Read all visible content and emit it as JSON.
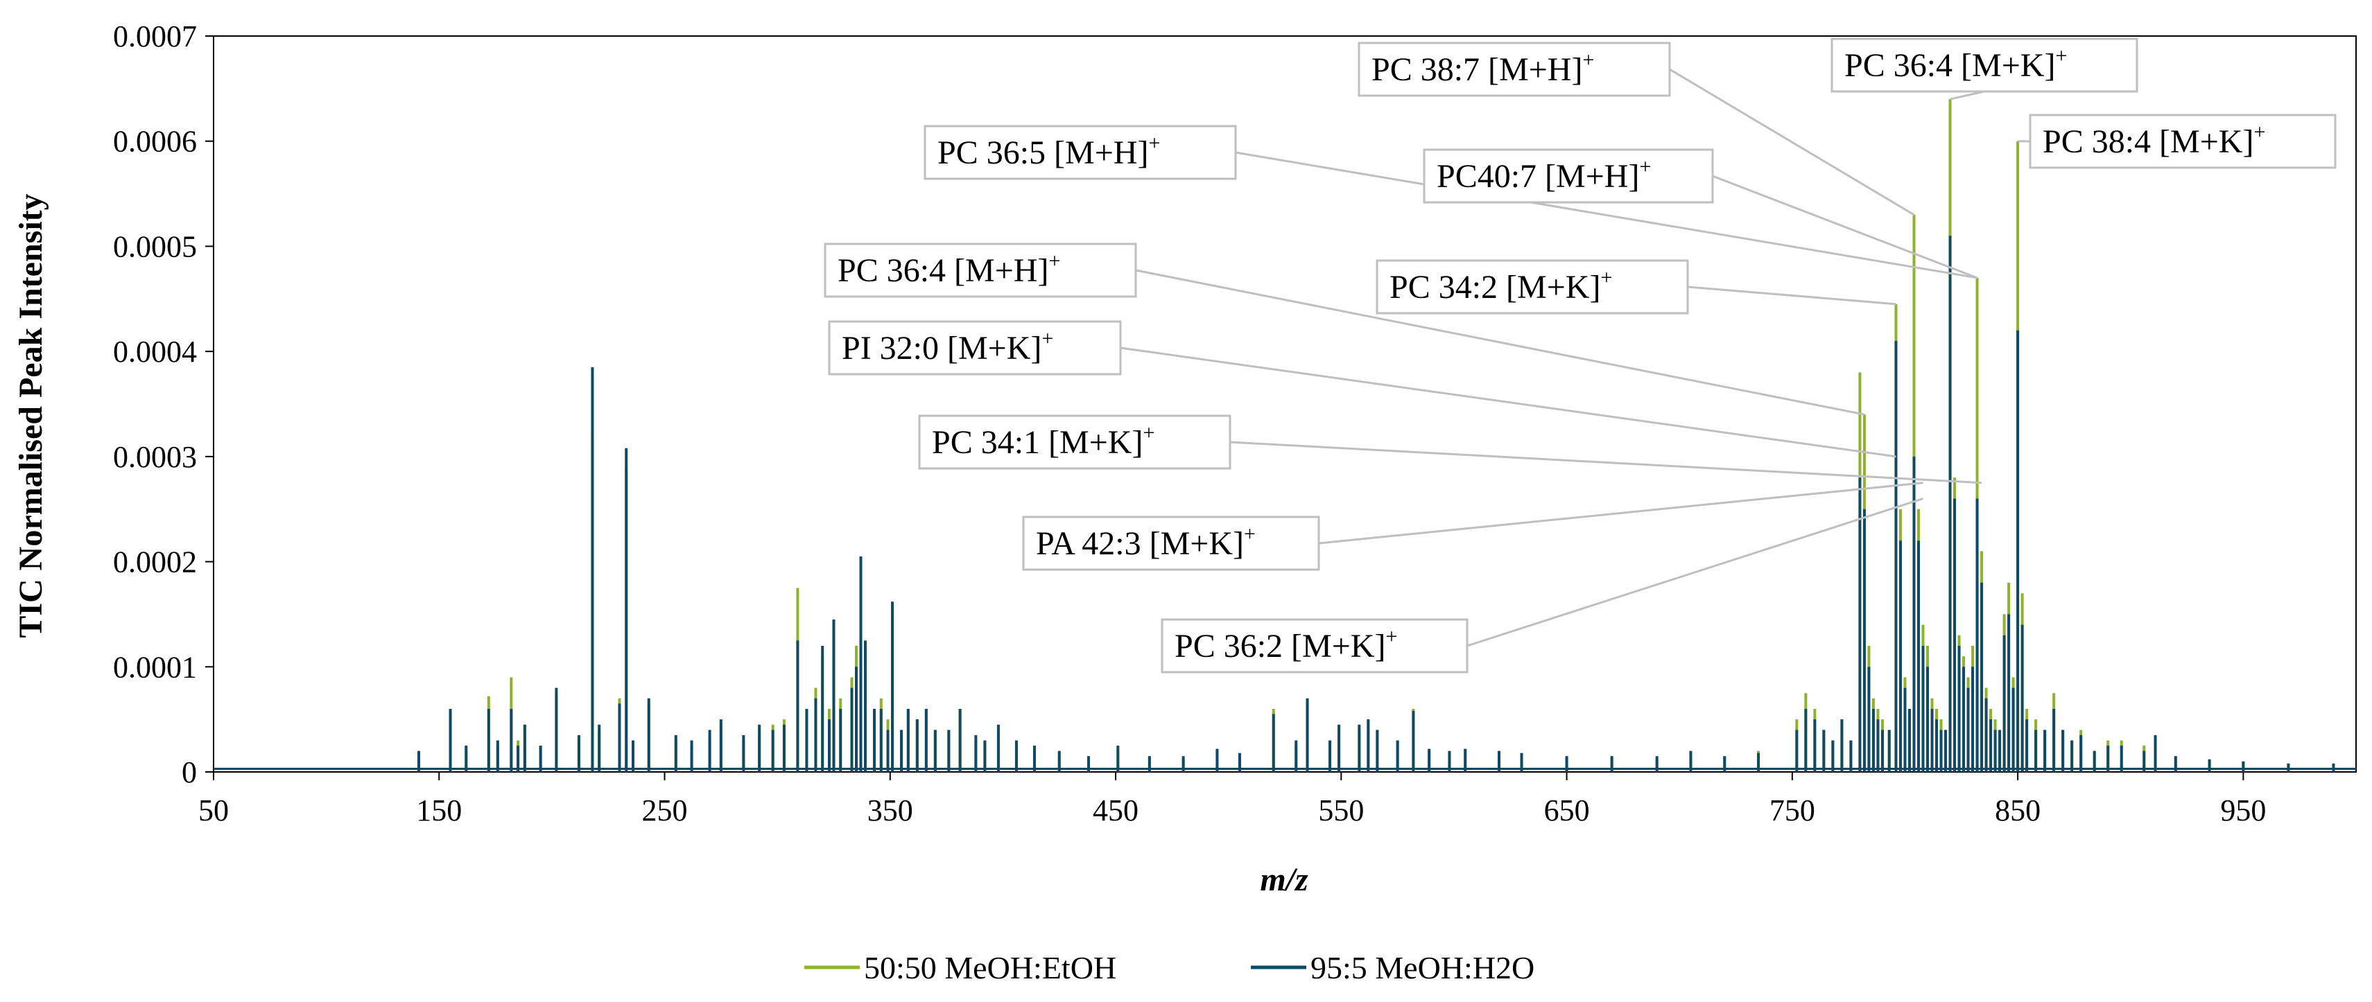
{
  "chart_data": {
    "type": "line",
    "title": "",
    "xlabel": "m/z",
    "ylabel": "TIC Normalised Peak Intensity",
    "xlim": [
      50,
      1000
    ],
    "ylim": [
      0,
      0.0007
    ],
    "x_ticks": [
      50,
      150,
      250,
      350,
      450,
      550,
      650,
      750,
      850,
      950
    ],
    "y_ticks": [
      0,
      0.0001,
      0.0002,
      0.0003,
      0.0004,
      0.0005,
      0.0006,
      0.0007
    ],
    "x_tick_labels": [
      "50",
      "150",
      "250",
      "350",
      "450",
      "550",
      "650",
      "750",
      "850",
      "950"
    ],
    "y_tick_labels": [
      "0",
      "0.0001",
      "0.0002",
      "0.0003",
      "0.0004",
      "0.0005",
      "0.0006",
      "0.0007"
    ],
    "legend_position": "bottom-center",
    "series": [
      {
        "name": "50:50 MeOH:EtOH",
        "color": "#8db32c",
        "peaks": [
          [
            141,
            1.8e-05
          ],
          [
            155,
            5.5e-05
          ],
          [
            162,
            2e-05
          ],
          [
            172,
            7.2e-05
          ],
          [
            176,
            2.5e-05
          ],
          [
            182,
            9e-05
          ],
          [
            185,
            3e-05
          ],
          [
            188,
            4.5e-05
          ],
          [
            195,
            2.5e-05
          ],
          [
            202,
            7.5e-05
          ],
          [
            212,
            3e-05
          ],
          [
            218,
            0.00032
          ],
          [
            221,
            4e-05
          ],
          [
            230,
            7e-05
          ],
          [
            233,
            0.00029
          ],
          [
            236,
            2.5e-05
          ],
          [
            243,
            6.5e-05
          ],
          [
            255,
            3e-05
          ],
          [
            262,
            2.5e-05
          ],
          [
            270,
            3.5e-05
          ],
          [
            275,
            4.5e-05
          ],
          [
            285,
            3e-05
          ],
          [
            292,
            4e-05
          ],
          [
            298,
            4.5e-05
          ],
          [
            303,
            5e-05
          ],
          [
            309,
            0.000175
          ],
          [
            313,
            6e-05
          ],
          [
            317,
            8e-05
          ],
          [
            320,
            0.00011
          ],
          [
            323,
            6e-05
          ],
          [
            325,
            0.00014
          ],
          [
            328,
            7e-05
          ],
          [
            333,
            9e-05
          ],
          [
            335,
            0.00012
          ],
          [
            337,
            0.00019
          ],
          [
            339,
            0.00012
          ],
          [
            343,
            6e-05
          ],
          [
            346,
            7e-05
          ],
          [
            349,
            5e-05
          ],
          [
            351,
            0.00015
          ],
          [
            355,
            4e-05
          ],
          [
            358,
            6e-05
          ],
          [
            362,
            5e-05
          ],
          [
            366,
            6e-05
          ],
          [
            370,
            4e-05
          ],
          [
            376,
            4e-05
          ],
          [
            381,
            6e-05
          ],
          [
            388,
            3e-05
          ],
          [
            392,
            3e-05
          ],
          [
            398,
            4e-05
          ],
          [
            406,
            3e-05
          ],
          [
            414,
            2e-05
          ],
          [
            425,
            1.8e-05
          ],
          [
            438,
            1.5e-05
          ],
          [
            451,
            2e-05
          ],
          [
            465,
            1.5e-05
          ],
          [
            480,
            1.2e-05
          ],
          [
            495,
            2e-05
          ],
          [
            505,
            1.5e-05
          ],
          [
            520,
            6e-05
          ],
          [
            530,
            2.5e-05
          ],
          [
            535,
            6.5e-05
          ],
          [
            545,
            3e-05
          ],
          [
            549,
            4e-05
          ],
          [
            558,
            4e-05
          ],
          [
            562,
            5e-05
          ],
          [
            566,
            4e-05
          ],
          [
            575,
            3e-05
          ],
          [
            582,
            6e-05
          ],
          [
            589,
            2e-05
          ],
          [
            598,
            1.8e-05
          ],
          [
            605,
            2e-05
          ],
          [
            620,
            1.8e-05
          ],
          [
            630,
            1.5e-05
          ],
          [
            650,
            1.5e-05
          ],
          [
            670,
            1.5e-05
          ],
          [
            690,
            1.2e-05
          ],
          [
            705,
            1.8e-05
          ],
          [
            720,
            1.5e-05
          ],
          [
            735,
            2e-05
          ],
          [
            752,
            5e-05
          ],
          [
            756,
            7.5e-05
          ],
          [
            760,
            6e-05
          ],
          [
            764,
            4e-05
          ],
          [
            768,
            3e-05
          ],
          [
            772,
            5e-05
          ],
          [
            776,
            3e-05
          ],
          [
            780,
            0.00038
          ],
          [
            782,
            0.00034
          ],
          [
            784,
            0.00012
          ],
          [
            786,
            7e-05
          ],
          [
            788,
            6e-05
          ],
          [
            790,
            5e-05
          ],
          [
            793,
            4e-05
          ],
          [
            796,
            0.000445
          ],
          [
            798,
            0.00025
          ],
          [
            800,
            9e-05
          ],
          [
            802,
            6e-05
          ],
          [
            804,
            0.00053
          ],
          [
            806,
            0.00025
          ],
          [
            808,
            0.00014
          ],
          [
            810,
            0.00012
          ],
          [
            812,
            7e-05
          ],
          [
            814,
            6e-05
          ],
          [
            816,
            5e-05
          ],
          [
            818,
            4e-05
          ],
          [
            820,
            0.00064
          ],
          [
            822,
            0.00028
          ],
          [
            824,
            0.00013
          ],
          [
            826,
            0.00011
          ],
          [
            828,
            9e-05
          ],
          [
            830,
            0.00012
          ],
          [
            832,
            0.00047
          ],
          [
            834,
            0.00021
          ],
          [
            836,
            8e-05
          ],
          [
            838,
            6e-05
          ],
          [
            840,
            5e-05
          ],
          [
            842,
            4e-05
          ],
          [
            844,
            0.00015
          ],
          [
            846,
            0.00018
          ],
          [
            848,
            9e-05
          ],
          [
            850,
            0.0006
          ],
          [
            852,
            0.00017
          ],
          [
            854,
            6e-05
          ],
          [
            858,
            5e-05
          ],
          [
            862,
            4e-05
          ],
          [
            866,
            7.5e-05
          ],
          [
            870,
            4e-05
          ],
          [
            874,
            3e-05
          ],
          [
            878,
            4e-05
          ],
          [
            884,
            2e-05
          ],
          [
            890,
            3e-05
          ],
          [
            896,
            3e-05
          ],
          [
            906,
            2.5e-05
          ],
          [
            911,
            3e-05
          ],
          [
            920,
            1.5e-05
          ],
          [
            935,
            1.2e-05
          ],
          [
            950,
            1e-05
          ],
          [
            970,
            8e-06
          ],
          [
            990,
            8e-06
          ]
        ]
      },
      {
        "name": "95:5 MeOH:H2O",
        "color": "#0f4964",
        "peaks": [
          [
            141,
            2e-05
          ],
          [
            155,
            6e-05
          ],
          [
            162,
            2.5e-05
          ],
          [
            172,
            6e-05
          ],
          [
            176,
            3e-05
          ],
          [
            182,
            6e-05
          ],
          [
            185,
            2.5e-05
          ],
          [
            188,
            4.5e-05
          ],
          [
            195,
            2.5e-05
          ],
          [
            202,
            8e-05
          ],
          [
            212,
            3.5e-05
          ],
          [
            218,
            0.000385
          ],
          [
            221,
            4.5e-05
          ],
          [
            230,
            6.5e-05
          ],
          [
            233,
            0.000308
          ],
          [
            236,
            3e-05
          ],
          [
            243,
            7e-05
          ],
          [
            255,
            3.5e-05
          ],
          [
            262,
            3e-05
          ],
          [
            270,
            4e-05
          ],
          [
            275,
            5e-05
          ],
          [
            285,
            3.5e-05
          ],
          [
            292,
            4.5e-05
          ],
          [
            298,
            4e-05
          ],
          [
            303,
            4.5e-05
          ],
          [
            309,
            0.000125
          ],
          [
            313,
            6e-05
          ],
          [
            317,
            7e-05
          ],
          [
            320,
            0.00012
          ],
          [
            323,
            5e-05
          ],
          [
            325,
            0.000145
          ],
          [
            328,
            6e-05
          ],
          [
            333,
            8e-05
          ],
          [
            335,
            0.0001
          ],
          [
            337,
            0.000205
          ],
          [
            339,
            0.000125
          ],
          [
            343,
            6e-05
          ],
          [
            346,
            6e-05
          ],
          [
            349,
            4e-05
          ],
          [
            351,
            0.000162
          ],
          [
            355,
            4e-05
          ],
          [
            358,
            6e-05
          ],
          [
            362,
            5e-05
          ],
          [
            366,
            6e-05
          ],
          [
            370,
            4e-05
          ],
          [
            376,
            4e-05
          ],
          [
            381,
            6e-05
          ],
          [
            388,
            3.5e-05
          ],
          [
            392,
            3e-05
          ],
          [
            398,
            4.5e-05
          ],
          [
            406,
            3e-05
          ],
          [
            414,
            2.5e-05
          ],
          [
            425,
            2e-05
          ],
          [
            438,
            1.5e-05
          ],
          [
            451,
            2.5e-05
          ],
          [
            465,
            1.5e-05
          ],
          [
            480,
            1.5e-05
          ],
          [
            495,
            2.2e-05
          ],
          [
            505,
            1.8e-05
          ],
          [
            520,
            5.5e-05
          ],
          [
            530,
            3e-05
          ],
          [
            535,
            7e-05
          ],
          [
            545,
            3e-05
          ],
          [
            549,
            4.5e-05
          ],
          [
            558,
            4.5e-05
          ],
          [
            562,
            5e-05
          ],
          [
            566,
            4e-05
          ],
          [
            575,
            3e-05
          ],
          [
            582,
            5.8e-05
          ],
          [
            589,
            2.2e-05
          ],
          [
            598,
            2e-05
          ],
          [
            605,
            2.2e-05
          ],
          [
            620,
            2e-05
          ],
          [
            630,
            1.8e-05
          ],
          [
            650,
            1.5e-05
          ],
          [
            670,
            1.5e-05
          ],
          [
            690,
            1.5e-05
          ],
          [
            705,
            2e-05
          ],
          [
            720,
            1.5e-05
          ],
          [
            735,
            1.8e-05
          ],
          [
            752,
            4e-05
          ],
          [
            756,
            6e-05
          ],
          [
            760,
            5e-05
          ],
          [
            764,
            4e-05
          ],
          [
            768,
            3e-05
          ],
          [
            772,
            5e-05
          ],
          [
            776,
            3e-05
          ],
          [
            780,
            0.00028
          ],
          [
            782,
            0.00025
          ],
          [
            784,
            0.0001
          ],
          [
            786,
            6e-05
          ],
          [
            788,
            5e-05
          ],
          [
            790,
            4e-05
          ],
          [
            793,
            4e-05
          ],
          [
            796,
            0.00041
          ],
          [
            798,
            0.00022
          ],
          [
            800,
            8e-05
          ],
          [
            802,
            6e-05
          ],
          [
            804,
            0.0003
          ],
          [
            806,
            0.00022
          ],
          [
            808,
            0.00012
          ],
          [
            810,
            0.0001
          ],
          [
            812,
            6e-05
          ],
          [
            814,
            5e-05
          ],
          [
            816,
            4e-05
          ],
          [
            818,
            4e-05
          ],
          [
            820,
            0.00051
          ],
          [
            822,
            0.00026
          ],
          [
            824,
            0.00012
          ],
          [
            826,
            0.0001
          ],
          [
            828,
            8e-05
          ],
          [
            830,
            0.0001
          ],
          [
            832,
            0.00026
          ],
          [
            834,
            0.00018
          ],
          [
            836,
            7e-05
          ],
          [
            838,
            5e-05
          ],
          [
            840,
            4e-05
          ],
          [
            842,
            4e-05
          ],
          [
            844,
            0.00013
          ],
          [
            846,
            0.00015
          ],
          [
            848,
            8e-05
          ],
          [
            850,
            0.00042
          ],
          [
            852,
            0.00014
          ],
          [
            854,
            5e-05
          ],
          [
            858,
            4e-05
          ],
          [
            862,
            4e-05
          ],
          [
            866,
            6e-05
          ],
          [
            870,
            4e-05
          ],
          [
            874,
            3e-05
          ],
          [
            878,
            3.5e-05
          ],
          [
            884,
            2e-05
          ],
          [
            890,
            2.5e-05
          ],
          [
            896,
            2.5e-05
          ],
          [
            906,
            2e-05
          ],
          [
            911,
            3.5e-05
          ],
          [
            920,
            1.5e-05
          ],
          [
            935,
            1.2e-05
          ],
          [
            950,
            1e-05
          ],
          [
            970,
            8e-06
          ],
          [
            990,
            8e-06
          ]
        ]
      }
    ],
    "annotations": [
      {
        "base": "PC 38:7 [M+H]",
        "sup": "+",
        "target_mz": 804,
        "target_y": 0.00053
      },
      {
        "base": "PC 36:4 [M+K]",
        "sup": "+",
        "target_mz": 820,
        "target_y": 0.00064
      },
      {
        "base": "PC 38:4 [M+K]",
        "sup": "+",
        "target_mz": 850,
        "target_y": 0.0006
      },
      {
        "base": "PC 36:5 [M+H]",
        "sup": "+",
        "target_mz": 832,
        "target_y": 0.00047
      },
      {
        "base": "PC40:7 [M+H]",
        "sup": "+",
        "target_mz": 832,
        "target_y": 0.00047
      },
      {
        "base": "PC 34:2 [M+K]",
        "sup": "+",
        "target_mz": 796,
        "target_y": 0.000445
      },
      {
        "base": "PC 36:4 [M+H]",
        "sup": "+",
        "target_mz": 782,
        "target_y": 0.00034
      },
      {
        "base": "PI 32:0 [M+K]",
        "sup": "+",
        "target_mz": 796,
        "target_y": 0.0003
      },
      {
        "base": "PC 34:1 [M+K]",
        "sup": "+",
        "target_mz": 834,
        "target_y": 0.000275
      },
      {
        "base": "PA 42:3 [M+K]",
        "sup": "+",
        "target_mz": 808,
        "target_y": 0.000275
      },
      {
        "base": "PC 36:2 [M+K]",
        "sup": "+",
        "target_mz": 808,
        "target_y": 0.00026
      }
    ]
  }
}
